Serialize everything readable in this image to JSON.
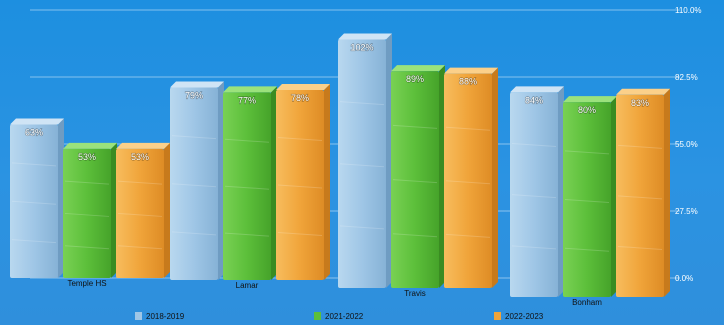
{
  "chart_data": {
    "type": "bar",
    "categories": [
      "Temple HS",
      "Lamar",
      "Travis",
      "Bonham"
    ],
    "series": [
      {
        "name": "2018-2019",
        "color": "#9fc6e6",
        "values": [
          63,
          79,
          102,
          84
        ],
        "labels": [
          "63%",
          "79%",
          "102%",
          "84%"
        ]
      },
      {
        "name": "2021-2022",
        "color": "#5cbf3a",
        "values": [
          53,
          77,
          89,
          80
        ],
        "labels": [
          "53%",
          "77%",
          "89%",
          "80%"
        ]
      },
      {
        "name": "2022-2023",
        "color": "#f0a43a",
        "values": [
          53,
          78,
          88,
          83
        ],
        "labels": [
          "53%",
          "78%",
          "88%",
          "83%"
        ]
      }
    ],
    "ylim": [
      0,
      110
    ],
    "yticks": [
      0,
      27.5,
      55,
      82.5,
      110
    ],
    "ytick_labels": [
      "0.0%",
      "27.5%",
      "55.0%",
      "82.5%",
      "110.0%"
    ],
    "grid": true,
    "legend_position": "bottom",
    "style": "3d-bar"
  }
}
